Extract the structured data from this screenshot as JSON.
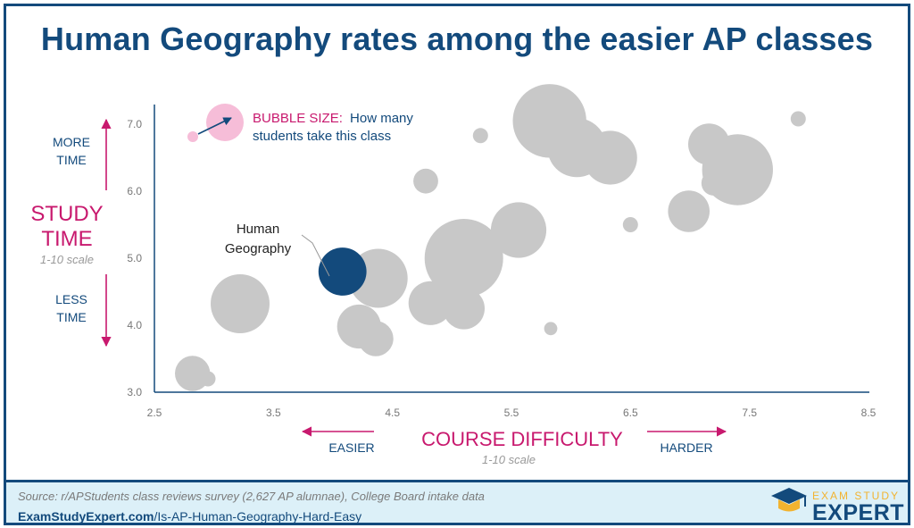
{
  "title": "Human Geography rates among the easier AP classes",
  "y_axis": {
    "label_line1": "STUDY",
    "label_line2": "TIME",
    "scale_note": "1-10 scale",
    "more_line1": "MORE",
    "more_line2": "TIME",
    "less_line1": "LESS",
    "less_line2": "TIME"
  },
  "x_axis": {
    "label": "COURSE DIFFICULTY",
    "scale_note": "1-10 scale",
    "easier": "EASIER",
    "harder": "HARDER"
  },
  "legend": {
    "bold": "BUBBLE SIZE:",
    "rest_line1": "How many",
    "rest_line2": "students take this class"
  },
  "annotation": {
    "line1": "Human",
    "line2": "Geography"
  },
  "footer": {
    "source": "Source: r/APStudents class reviews survey (2,627 AP alumnae), College Board intake data",
    "url_bold": "ExamStudyExpert.com",
    "url_rest": "/Is-AP-Human-Geography-Hard-Easy"
  },
  "logo": {
    "top": "EXAM STUDY",
    "bottom": "EXPERT",
    "icon": "graduation-cap-icon"
  },
  "colors": {
    "navy": "#134a7c",
    "magenta": "#c8196e",
    "bubble": "#c8c8c8",
    "highlight": "#134a7c",
    "legend_bubble": "#f6bdd8"
  },
  "chart_data": {
    "type": "scatter",
    "variant": "bubble",
    "xlabel": "COURSE DIFFICULTY",
    "ylabel": "STUDY TIME",
    "xlim": [
      2.5,
      8.5
    ],
    "ylim": [
      3.0,
      7.5
    ],
    "xticks": [
      2.5,
      3.5,
      4.5,
      5.5,
      6.5,
      7.5,
      8.5
    ],
    "xtick_labels": [
      "2.5",
      "3.5",
      "4.5",
      "5.5",
      "6.5",
      "7.5",
      "8.5"
    ],
    "yticks": [
      3.0,
      4.0,
      5.0,
      6.0,
      7.0
    ],
    "ytick_labels": [
      "3.0",
      "4.0",
      "5.0",
      "6.0",
      "7.0"
    ],
    "size_meaning": "How many students take this class",
    "points": [
      {
        "x": 2.82,
        "y": 3.28,
        "size": 3.2,
        "highlight": false
      },
      {
        "x": 2.95,
        "y": 3.2,
        "size": 0.6,
        "highlight": false
      },
      {
        "x": 3.22,
        "y": 4.32,
        "size": 9.0,
        "highlight": false
      },
      {
        "x": 4.08,
        "y": 4.8,
        "size": 6.0,
        "highlight": true
      },
      {
        "x": 4.38,
        "y": 4.7,
        "size": 9.0,
        "highlight": false
      },
      {
        "x": 4.22,
        "y": 3.98,
        "size": 5.0,
        "highlight": false
      },
      {
        "x": 4.36,
        "y": 3.8,
        "size": 3.2,
        "highlight": false
      },
      {
        "x": 4.78,
        "y": 6.15,
        "size": 1.6,
        "highlight": false
      },
      {
        "x": 4.82,
        "y": 4.33,
        "size": 5.0,
        "highlight": false
      },
      {
        "x": 5.1,
        "y": 4.25,
        "size": 4.5,
        "highlight": false
      },
      {
        "x": 5.1,
        "y": 5.0,
        "size": 16.0,
        "highlight": false
      },
      {
        "x": 5.24,
        "y": 6.83,
        "size": 0.6,
        "highlight": false
      },
      {
        "x": 5.56,
        "y": 5.42,
        "size": 8.0,
        "highlight": false
      },
      {
        "x": 5.83,
        "y": 3.95,
        "size": 0.45,
        "highlight": false
      },
      {
        "x": 5.82,
        "y": 7.05,
        "size": 14.0,
        "highlight": false
      },
      {
        "x": 6.05,
        "y": 6.65,
        "size": 9.0,
        "highlight": false
      },
      {
        "x": 6.33,
        "y": 6.5,
        "size": 7.5,
        "highlight": false
      },
      {
        "x": 6.5,
        "y": 5.5,
        "size": 0.6,
        "highlight": false
      },
      {
        "x": 6.99,
        "y": 5.7,
        "size": 4.5,
        "highlight": false
      },
      {
        "x": 7.16,
        "y": 6.7,
        "size": 4.5,
        "highlight": false
      },
      {
        "x": 7.2,
        "y": 6.12,
        "size": 1.6,
        "highlight": false
      },
      {
        "x": 7.4,
        "y": 6.32,
        "size": 13.0,
        "highlight": false
      },
      {
        "x": 7.91,
        "y": 7.08,
        "size": 0.6,
        "highlight": false
      }
    ]
  }
}
